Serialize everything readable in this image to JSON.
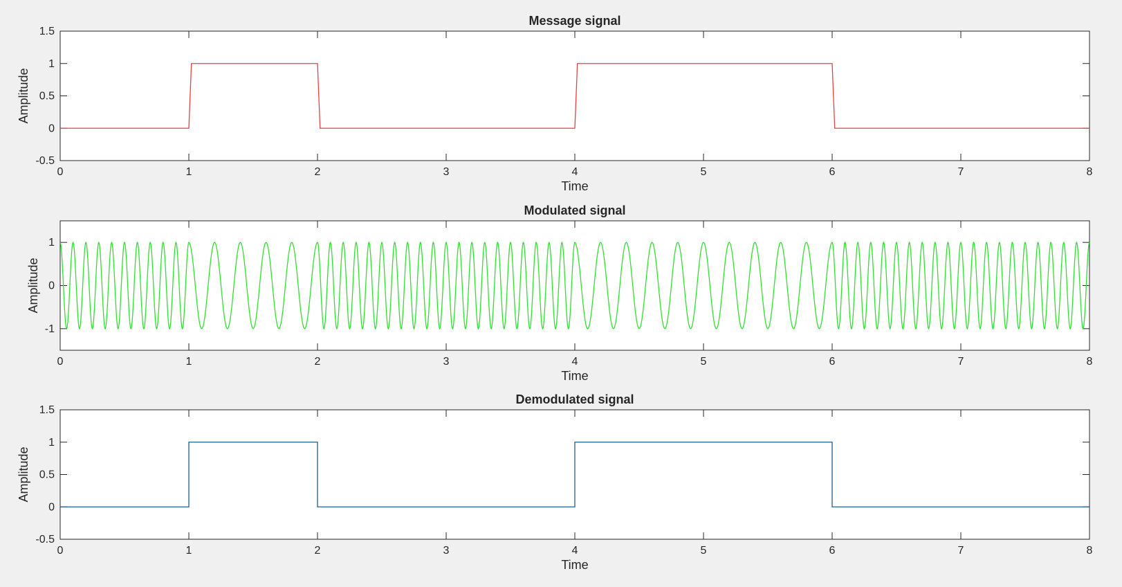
{
  "chart_data": [
    {
      "type": "line",
      "title": "Message signal",
      "xlabel": "Time",
      "ylabel": "Amplitude",
      "xlim": [
        0,
        8
      ],
      "ylim": [
        -0.5,
        1.5
      ],
      "xticks": [
        0,
        1,
        2,
        3,
        4,
        5,
        6,
        7,
        8
      ],
      "yticks": [
        -0.5,
        0,
        0.5,
        1,
        1.5
      ],
      "grid": false,
      "color": "#e84040",
      "series": [
        {
          "x": [
            0,
            1,
            1.02,
            2,
            2.02,
            4,
            4.02,
            6,
            6.02,
            8
          ],
          "y": [
            0,
            0,
            1,
            1,
            0,
            0,
            1,
            1,
            0,
            0
          ]
        }
      ]
    },
    {
      "type": "line",
      "title": "Modulated signal",
      "xlabel": "Time",
      "ylabel": "Amplitude",
      "xlim": [
        0,
        8
      ],
      "ylim": [
        -1.5,
        1.5
      ],
      "xticks": [
        0,
        1,
        2,
        3,
        4,
        5,
        6,
        7,
        8
      ],
      "yticks": [
        -1,
        0,
        1
      ],
      "grid": false,
      "color": "#30e030",
      "series": [
        {
          "function": "cosine",
          "amplitude": 1,
          "segments": [
            {
              "x": [
                0,
                1
              ],
              "frequency": 10
            },
            {
              "x": [
                1,
                2
              ],
              "frequency": 5
            },
            {
              "x": [
                2,
                4
              ],
              "frequency": 10
            },
            {
              "x": [
                4,
                6
              ],
              "frequency": 5
            },
            {
              "x": [
                6,
                8
              ],
              "frequency": 10
            }
          ]
        }
      ]
    },
    {
      "type": "line",
      "title": "Demodulated signal",
      "xlabel": "Time",
      "ylabel": "Amplitude",
      "xlim": [
        0,
        8
      ],
      "ylim": [
        -0.5,
        1.5
      ],
      "xticks": [
        0,
        1,
        2,
        3,
        4,
        5,
        6,
        7,
        8
      ],
      "yticks": [
        -0.5,
        0,
        0.5,
        1,
        1.5
      ],
      "grid": false,
      "color": "#1f5f8b",
      "series": [
        {
          "x": [
            0,
            1,
            1,
            2,
            2,
            4,
            4,
            6,
            6,
            8
          ],
          "y": [
            0,
            0,
            1,
            1,
            0,
            0,
            1,
            1,
            0,
            0
          ]
        }
      ]
    }
  ]
}
